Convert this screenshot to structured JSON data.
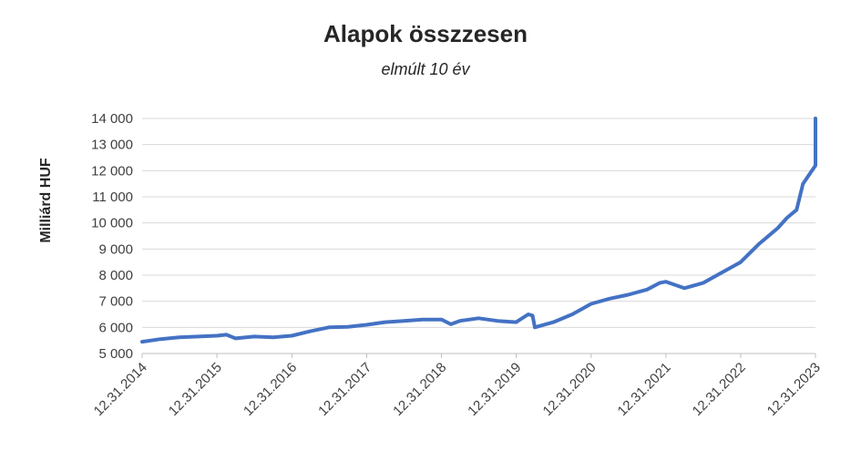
{
  "chart_data": {
    "type": "line",
    "title": "Alapok összzesen",
    "subtitle": "elmúlt 10 év",
    "xlabel": "",
    "ylabel": "Milliárd HUF",
    "ylim": [
      5000,
      14000
    ],
    "y_ticks": [
      5000,
      6000,
      7000,
      8000,
      9000,
      10000,
      11000,
      12000,
      13000,
      14000
    ],
    "y_tick_labels": [
      "5 000",
      "6 000",
      "7 000",
      "8 000",
      "9 000",
      "10 000",
      "11 000",
      "12 000",
      "13 000",
      "14 000"
    ],
    "x_ticks": [
      "12.31.2014",
      "12.31.2015",
      "12.31.2016",
      "12.31.2017",
      "12.31.2018",
      "12.31.2019",
      "12.31.2020",
      "12.31.2021",
      "12.31.2022",
      "12.31.2023"
    ],
    "grid": true,
    "legend": "none",
    "series": [
      {
        "color": "#4472c4",
        "x": [
          "2014-12-31",
          "2015-03-31",
          "2015-06-30",
          "2015-09-30",
          "2015-12-31",
          "2016-02-15",
          "2016-03-31",
          "2016-06-30",
          "2016-09-30",
          "2016-12-31",
          "2017-03-31",
          "2017-06-30",
          "2017-09-30",
          "2017-12-31",
          "2018-03-31",
          "2018-06-30",
          "2018-09-30",
          "2018-12-31",
          "2019-02-15",
          "2019-03-31",
          "2019-06-30",
          "2019-09-30",
          "2019-12-31",
          "2020-02-28",
          "2020-03-20",
          "2020-03-31",
          "2020-06-30",
          "2020-09-30",
          "2020-12-31",
          "2021-03-31",
          "2021-06-30",
          "2021-09-30",
          "2021-11-30",
          "2021-12-31",
          "2022-03-31",
          "2022-06-30",
          "2022-09-30",
          "2022-12-31",
          "2023-03-31",
          "2023-06-30",
          "2023-08-15",
          "2023-09-30",
          "2023-10-31",
          "2023-12-31",
          "2024-03-31",
          "2024-06-30",
          "2024-09-30",
          "2024-12-31"
        ],
        "values": [
          5450,
          5550,
          5620,
          5650,
          5680,
          5720,
          5580,
          5650,
          5620,
          5680,
          5850,
          6000,
          6020,
          6100,
          6200,
          6250,
          6300,
          6300,
          6120,
          6250,
          6350,
          6250,
          6200,
          6500,
          6450,
          6000,
          6200,
          6500,
          6900,
          7100,
          7250,
          7450,
          7700,
          7750,
          7500,
          7700,
          8100,
          8500,
          9200,
          9800,
          10200,
          10500,
          11500,
          12200,
          12700,
          13000,
          13400,
          14000
        ]
      }
    ]
  }
}
